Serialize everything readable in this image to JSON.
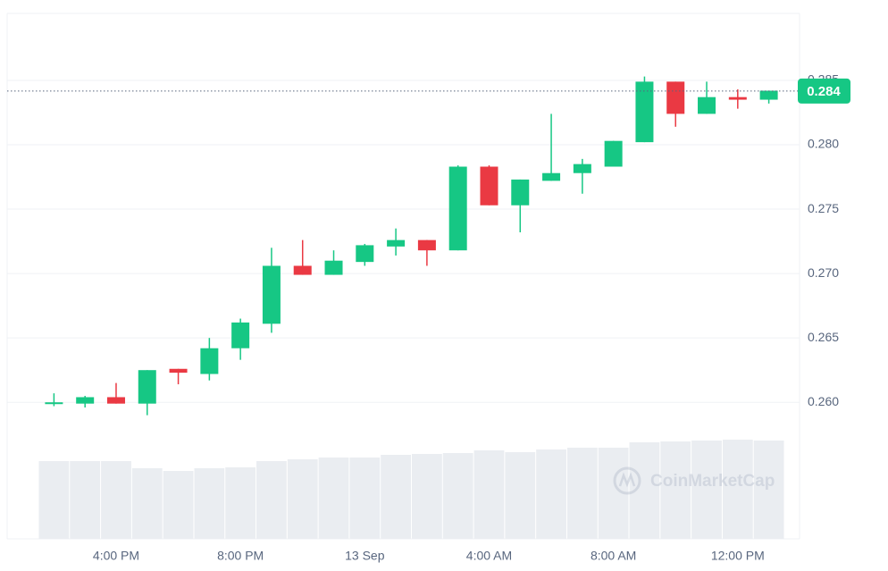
{
  "chart_data": {
    "type": "candlestick",
    "categories": [
      null,
      null,
      "4:00 PM",
      null,
      null,
      null,
      "8:00 PM",
      null,
      null,
      null,
      "13 Sep",
      null,
      null,
      null,
      "4:00 AM",
      null,
      null,
      null,
      "8:00 AM",
      null,
      null,
      null,
      "12:00 PM",
      null
    ],
    "open": [
      0.2599,
      0.2599,
      0.2604,
      0.2599,
      0.2626,
      0.2622,
      0.2642,
      0.2661,
      0.2706,
      0.2699,
      0.2709,
      0.2721,
      0.2726,
      0.2718,
      0.2783,
      0.2753,
      0.2772,
      0.2778,
      0.2783,
      0.2802,
      0.2849,
      0.2824,
      0.2837,
      0.2835
    ],
    "high": [
      0.2607,
      0.2605,
      0.2615,
      0.2625,
      0.2626,
      0.265,
      0.2665,
      0.272,
      0.2726,
      0.2718,
      0.2723,
      0.2735,
      0.2726,
      0.2784,
      0.2784,
      0.2773,
      0.2824,
      0.2789,
      0.2803,
      0.2853,
      0.2849,
      0.2849,
      0.2843,
      0.2842
    ],
    "low": [
      0.2597,
      0.2596,
      0.2599,
      0.259,
      0.2614,
      0.2617,
      0.2633,
      0.2654,
      0.2699,
      0.2699,
      0.2706,
      0.2714,
      0.2706,
      0.2718,
      0.2753,
      0.2732,
      0.2772,
      0.2762,
      0.2783,
      0.2802,
      0.2814,
      0.2824,
      0.2828,
      0.2832
    ],
    "close": [
      0.26,
      0.2604,
      0.2599,
      0.2625,
      0.2623,
      0.2642,
      0.2662,
      0.2706,
      0.2699,
      0.271,
      0.2722,
      0.2726,
      0.2718,
      0.2783,
      0.2753,
      0.2773,
      0.2778,
      0.2785,
      0.2803,
      0.2849,
      0.2824,
      0.2837,
      0.2835,
      0.2842
    ],
    "volume": [
      87,
      87,
      87,
      79,
      76,
      79,
      80,
      87,
      89,
      91,
      91,
      94,
      95,
      96,
      99,
      97,
      100,
      102,
      102,
      108,
      109,
      110,
      111,
      110
    ],
    "up_color": "#16c784",
    "down_color": "#ea3943",
    "volume_color": "#eaedf1",
    "ylim": [
      0.2494,
      0.2902
    ],
    "yticks": [
      {
        "value": 0.26,
        "label": "0.260"
      },
      {
        "value": 0.265,
        "label": "0.265"
      },
      {
        "value": 0.27,
        "label": "0.270"
      },
      {
        "value": 0.275,
        "label": "0.275"
      },
      {
        "value": 0.28,
        "label": "0.280"
      },
      {
        "value": 0.285,
        "label": "0.285"
      }
    ],
    "grid": true,
    "current_price": {
      "value": 0.28417,
      "label": "0.284"
    },
    "watermark": "CoinMarketCap"
  }
}
